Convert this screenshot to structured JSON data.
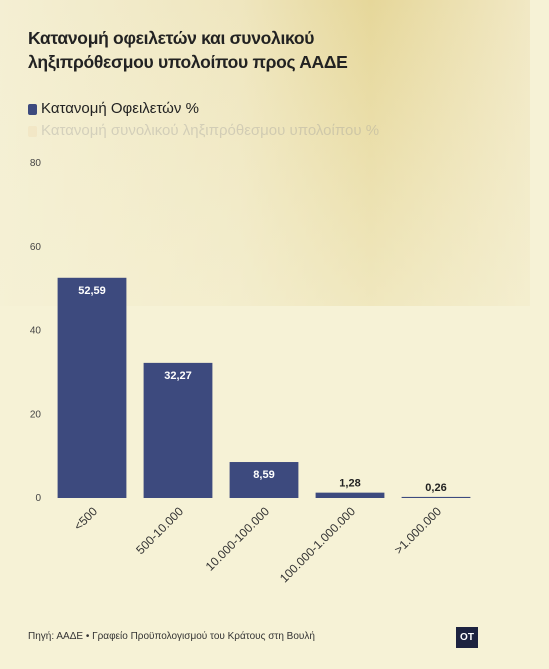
{
  "chart_data": {
    "type": "bar",
    "title": "Κατανομή οφειλετών και συνολικού ληξιπρόθεσμου υπολοίπου προς ΑΑΔΕ",
    "categories": [
      "<500",
      "500-10.000",
      "10.000-100.000",
      "100.000-1.000.000",
      ">1.000.000"
    ],
    "series": [
      {
        "name": "Κατανομή Οφειλετών %",
        "color": "#3d4a7e",
        "values": [
          52.59,
          32.27,
          8.59,
          1.28,
          0.26
        ],
        "value_labels": [
          "52,59",
          "32,27",
          "8,59",
          "1,28",
          "0,26"
        ]
      },
      {
        "name": "Κατανομή συνολικού ληξιπρόθεσμου υπολοίπου %",
        "color": "#f0d9b0",
        "values": [
          null,
          null,
          null,
          null,
          null
        ],
        "hidden": true
      }
    ],
    "ylim": [
      0,
      80
    ],
    "yticks": [
      0,
      20,
      40,
      60,
      80
    ],
    "grid": false,
    "source": "Πηγή: ΑΑΔΕ • Γραφείο Προϋπολογισμού του Κράτους στη Βουλή",
    "logo": "OT"
  }
}
